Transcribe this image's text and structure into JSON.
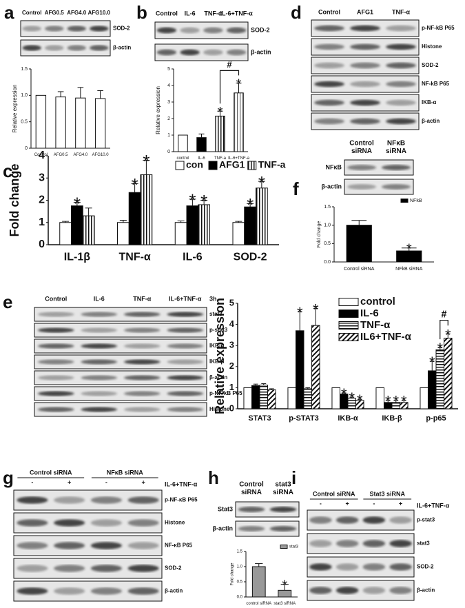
{
  "chart_data": [
    {
      "type": "bar",
      "ylabel": "Relative expression",
      "categories": [
        "Control",
        "AFG0.5",
        "AFG4.0",
        "AFG10.0"
      ],
      "values": [
        1.0,
        0.97,
        0.95,
        0.94
      ],
      "errors": [
        null,
        0.1,
        0.2,
        0.15
      ],
      "fills": [
        "white",
        "white",
        "white",
        "white"
      ],
      "ylim": [
        0,
        1.5
      ],
      "yticks": [
        0,
        0.5,
        {
          "value": 1,
          "label": "1.0"
        },
        1.5
      ]
    },
    {
      "type": "bar",
      "ylabel": "Relative expression",
      "categories": [
        "control",
        "IL-6",
        "TNF-a",
        "IL-6+TNF-a"
      ],
      "values": [
        1.0,
        0.85,
        2.15,
        3.55
      ],
      "errors": [
        null,
        0.22,
        0.3,
        0.6
      ],
      "fills": [
        "white",
        "black",
        "vstripe",
        "vstripe2"
      ],
      "significance": [
        null,
        null,
        "*",
        "*"
      ],
      "bracket": "#",
      "ylim": [
        0,
        5
      ],
      "yticks": [
        0,
        1,
        2,
        3,
        4,
        5
      ]
    },
    {
      "type": "bar",
      "panel": "c",
      "ylabel": "Fold change",
      "categories": [
        "IL-1β",
        "TNF-α",
        "IL-6",
        "SOD-2"
      ],
      "ylim": [
        0,
        4
      ],
      "yticks": [
        0,
        1,
        2,
        3,
        4
      ],
      "legend": "top-right",
      "series": [
        {
          "name": "con",
          "fill": "white",
          "values": [
            1.0,
            1.0,
            1.0,
            1.0
          ],
          "errors": [
            0.05,
            0.1,
            0.07,
            0.05
          ]
        },
        {
          "name": "AFG1",
          "fill": "black",
          "values": [
            1.75,
            2.35,
            1.75,
            1.7
          ],
          "errors": [
            0.15,
            0.4,
            0.3,
            0.15
          ],
          "significance": [
            "*",
            "*",
            "*",
            "*"
          ]
        },
        {
          "name": "TNF-a",
          "fill": "vstripe",
          "values": [
            1.3,
            3.15,
            1.8,
            2.55
          ],
          "errors": [
            0.35,
            0.65,
            0.2,
            0.3
          ],
          "significance": [
            null,
            "*",
            "*",
            "*"
          ]
        }
      ]
    },
    {
      "type": "bar",
      "ylabel": "Fold change",
      "categories": [
        "Control siRNA",
        "NFkB siRNA"
      ],
      "ylim": [
        0,
        1.5
      ],
      "yticks": [
        {
          "value": 0,
          "label": "0.0"
        },
        0.5,
        {
          "value": 1,
          "label": "1.0"
        },
        1.5
      ],
      "legend": "top-right",
      "series": [
        {
          "name": "NFkB",
          "fill": "black",
          "values": [
            1.0,
            0.3
          ],
          "errors": [
            0.13,
            0.08
          ],
          "significance": [
            null,
            "*"
          ]
        }
      ]
    },
    {
      "type": "bar",
      "ylabel": "Relative expression",
      "categories": [
        "STAT3",
        "p-STAT3",
        "IKB-α",
        "IKB-β",
        "p-p65"
      ],
      "ylim": [
        0,
        5
      ],
      "yticks": [
        0,
        1,
        2,
        3,
        4,
        5
      ],
      "legend": "top",
      "bracket": "#",
      "series": [
        {
          "name": "control",
          "fill": "white",
          "values": [
            1.0,
            1.0,
            1.0,
            1.0,
            1.0
          ],
          "errors": [
            null,
            null,
            null,
            null,
            null
          ]
        },
        {
          "name": "IL-6",
          "fill": "black",
          "values": [
            1.1,
            3.7,
            0.7,
            0.3,
            1.8
          ],
          "errors": [
            0.07,
            0.9,
            0.05,
            0.1,
            0.45
          ],
          "significance": [
            null,
            "*",
            "*",
            "*",
            "*"
          ]
        },
        {
          "name": "TNF-α",
          "fill": "hstripe",
          "values": [
            1.12,
            0.95,
            0.5,
            0.3,
            2.8
          ],
          "errors": [
            0.07,
            0.05,
            0.05,
            0.1,
            0.1
          ],
          "significance": [
            null,
            null,
            "*",
            "*",
            "*"
          ]
        },
        {
          "name": "IL6+TNF-α",
          "fill": "dstripe",
          "values": [
            0.9,
            3.95,
            0.4,
            0.3,
            3.35
          ],
          "errors": [
            0.05,
            0.8,
            0.05,
            0.1,
            0.2
          ],
          "significance": [
            null,
            "*",
            "*",
            "*",
            "*"
          ]
        }
      ]
    },
    {
      "type": "bar",
      "ylabel": "Fold change",
      "categories": [
        "control siRNA",
        "stat3 siRNA"
      ],
      "ylim": [
        0,
        1.5
      ],
      "yticks": [
        {
          "value": 0,
          "label": "0.0"
        },
        0.5,
        {
          "value": 1,
          "label": "1.0"
        },
        1.5
      ],
      "legend": "top-right",
      "series": [
        {
          "name": "stat3",
          "fill": "#999999",
          "values": [
            1.0,
            0.22
          ],
          "errors": [
            0.1,
            0.2
          ],
          "significance": [
            null,
            "*"
          ]
        }
      ]
    }
  ],
  "blots": [
    {
      "panel": "a",
      "lanes": [
        "Control",
        "AFG0.5",
        "AFG4.0",
        "AFG10.0"
      ],
      "rows": [
        "SOD-2",
        "β-actin"
      ]
    },
    {
      "panel": "b",
      "lanes": [
        "Control",
        "IL-6",
        "TNF-α",
        "IL-6+TNF-α"
      ],
      "rows": [
        "SOD-2",
        "β-actin"
      ]
    },
    {
      "panel": "d",
      "lanes": [
        "Control",
        "AFG1",
        "TNF-α"
      ],
      "rows": [
        "p-NF-kB P65",
        "Histone",
        "SOD-2",
        "NF-kB P65",
        "IKB-α",
        "β-actin"
      ]
    },
    {
      "panel": "f",
      "lanes": [
        "Control siRNA",
        "NFκB siRNA"
      ],
      "rows": [
        "NFκB",
        "β-actin"
      ]
    },
    {
      "panel": "e",
      "lanes": [
        "Control",
        "IL-6",
        "TNF-α",
        "IL-6+TNF-α"
      ],
      "note": "3h",
      "rows": [
        "stat3",
        "p-stat3",
        "IKB-α",
        "IKB-β",
        "β-actin",
        "p-NF-kB P65",
        "Histone"
      ]
    },
    {
      "panel": "g",
      "groups": [
        "Control siRNA",
        "NFκB siRNA"
      ],
      "lanes": [
        "-",
        "+",
        "-",
        "+"
      ],
      "note": "IL-6+TNF-α",
      "rows": [
        "p-NF-κB P65",
        "Histone",
        "NF-κB P65",
        "SOD-2",
        "β-actin"
      ]
    },
    {
      "panel": "h",
      "lanes": [
        "Control siRNA",
        "stat3 siRNA"
      ],
      "rows": [
        "Stat3",
        "β-actin"
      ]
    },
    {
      "panel": "i",
      "groups": [
        "Control siRNA",
        "Stat3 siRNA"
      ],
      "lanes": [
        "-",
        "+",
        "-",
        "+"
      ],
      "note": "IL-6+TNF-α",
      "rows": [
        "p-stat3",
        "stat3",
        "SOD-2",
        "β-actin"
      ]
    }
  ]
}
